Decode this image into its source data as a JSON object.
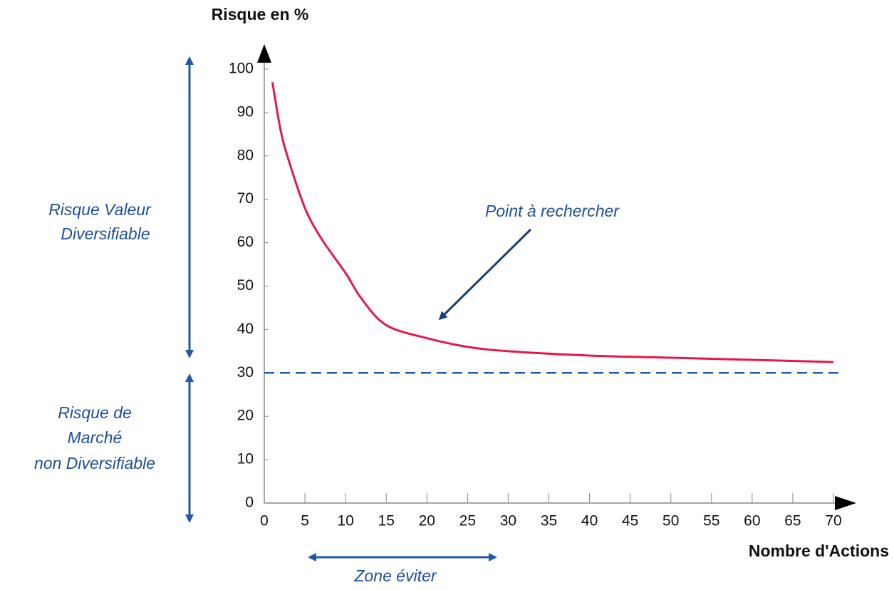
{
  "chart_data": {
    "type": "line",
    "y_label": "Risque en %",
    "x_label": "Nombre d'Actions",
    "x": [
      1,
      2,
      3,
      5,
      7,
      10,
      12,
      15,
      20,
      25,
      30,
      40,
      50,
      60,
      70
    ],
    "values": [
      97,
      86,
      79,
      68,
      61,
      53,
      47,
      41,
      38,
      36,
      35,
      34,
      33.5,
      33,
      32.5
    ],
    "color": "#e8174a",
    "reference_line": {
      "value": 30,
      "color": "#1f5aa6"
    },
    "xlim": [
      0,
      70
    ],
    "ylim": [
      0,
      100
    ],
    "xticks": [
      0,
      5,
      10,
      15,
      20,
      25,
      30,
      35,
      40,
      45,
      50,
      55,
      60,
      65,
      70
    ],
    "yticks": [
      0,
      10,
      20,
      30,
      40,
      50,
      60,
      70,
      80,
      90,
      100
    ],
    "annotations": {
      "diversifiable": [
        "Risque Valeur",
        "Diversifiable"
      ],
      "market": [
        "Risque de",
        "Marché",
        "non Diversifiable"
      ],
      "point": "Point à rechercher",
      "zone": "Zone éviter"
    }
  }
}
